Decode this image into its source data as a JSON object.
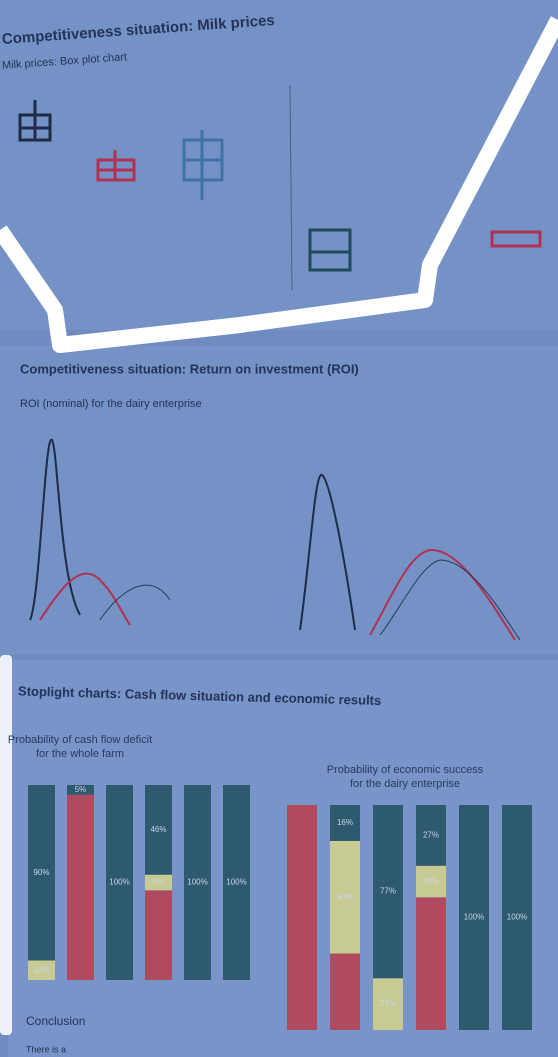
{
  "sections": [
    {
      "title": "Competitiveness situation: Milk prices",
      "subtitle": "Milk prices: Box plot chart"
    },
    {
      "title": "Competitiveness situation: Return on investment (ROI)",
      "subtitle": "ROI (nominal) for the dairy enterprise"
    },
    {
      "title": "Stoplight charts: Cash flow situation and economic results"
    },
    {
      "title": "Conclusion",
      "text": "There is a"
    }
  ],
  "chart_data": [
    {
      "type": "bar",
      "stacked": true,
      "title": "Probability of cash flow deficit for the whole farm",
      "ylim": [
        0,
        100
      ],
      "series": [
        {
          "color": "#b04a5e",
          "values": [
            0,
            95,
            0,
            46,
            0,
            0
          ]
        },
        {
          "color": "#c8ca93",
          "values": [
            10,
            0,
            0,
            8,
            0,
            0
          ],
          "value_labels": [
            "10%",
            null,
            null,
            "8%",
            null,
            null
          ]
        },
        {
          "color": "#2e5a6f",
          "values": [
            90,
            5,
            100,
            46,
            100,
            100
          ],
          "value_labels": [
            "90%",
            "5%",
            "100%",
            "46%",
            "100%",
            "100%"
          ]
        }
      ]
    },
    {
      "type": "bar",
      "stacked": true,
      "title": "Probability of economic success for the dairy enterprise",
      "ylim": [
        0,
        100
      ],
      "series": [
        {
          "color": "#b04a5e",
          "values": [
            100,
            34,
            0,
            59,
            0,
            0
          ]
        },
        {
          "color": "#c8ca93",
          "values": [
            0,
            50,
            23,
            14,
            0,
            0
          ],
          "value_labels": [
            null,
            "50%",
            "23%",
            "14%",
            null,
            null
          ]
        },
        {
          "color": "#2e5a6f",
          "values": [
            0,
            16,
            77,
            27,
            100,
            100
          ],
          "value_labels": [
            null,
            "16%",
            "77%",
            "27%",
            "100%",
            "100%"
          ]
        }
      ]
    }
  ]
}
